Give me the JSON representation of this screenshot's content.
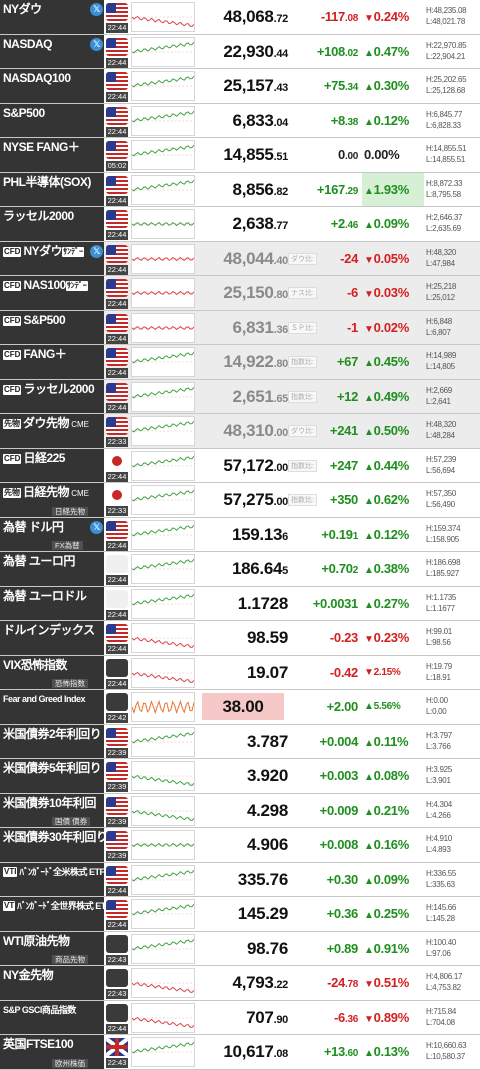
{
  "rows": [
    {
      "name": "NYダウ",
      "x": true,
      "flag": "us",
      "time": "22:44",
      "price_int": "48,068",
      "price_dec": ".72",
      "chg_int": "-117",
      "chg_dec": ".08",
      "dir": "dn",
      "pct": "0.24%",
      "high": "H:48,235.08",
      "low": "L:48,021.78",
      "trend": "dn"
    },
    {
      "name": "NASDAQ",
      "x": true,
      "flag": "us",
      "time": "22:44",
      "price_int": "22,930",
      "price_dec": ".44",
      "chg_int": "+108",
      "chg_dec": ".02",
      "dir": "up",
      "pct": "0.47%",
      "high": "H:22,970.85",
      "low": "L:22,904.21",
      "trend": "up"
    },
    {
      "name": "NASDAQ100",
      "flag": "us",
      "time": "22:44",
      "price_int": "25,157",
      "price_dec": ".43",
      "chg_int": "+75",
      "chg_dec": ".34",
      "dir": "up",
      "pct": "0.30%",
      "high": "H:25,202.65",
      "low": "L:25,128.68",
      "trend": "up"
    },
    {
      "name": "S&P500",
      "flag": "us",
      "time": "22:44",
      "price_int": "6,833",
      "price_dec": ".04",
      "chg_int": "+8",
      "chg_dec": ".38",
      "dir": "up",
      "pct": "0.12%",
      "high": "H:6,845.77",
      "low": "L:6,828.33",
      "trend": "up"
    },
    {
      "name": "NYSE FANG＋",
      "flag": "us",
      "time": "05:02",
      "price_int": "14,855",
      "price_dec": ".51",
      "chg_int": "0",
      "chg_dec": ".00",
      "dir": "neu",
      "pct": "0.00%",
      "high": "H:14,855.51",
      "low": "L:14,855.51",
      "trend": "up"
    },
    {
      "name": "PHL半導体(SOX)",
      "flag": "us",
      "time": "22:44",
      "price_int": "8,856",
      "price_dec": ".82",
      "chg_int": "+167",
      "chg_dec": ".29",
      "dir": "up",
      "pct": "1.93%",
      "pct_hl": true,
      "high": "H:8,872.33",
      "low": "L:8,795.58",
      "trend": "up"
    },
    {
      "name": "ラッセル2000",
      "flag": "us",
      "time": "22:44",
      "price_int": "2,638",
      "price_dec": ".77",
      "chg_int": "+2",
      "chg_dec": ".46",
      "dir": "up",
      "pct": "0.09%",
      "high": "H:2,646.37",
      "low": "L:2,635.69",
      "trend": "flat"
    },
    {
      "name": "NYダウ",
      "tag": "CFD",
      "note": "ｻﾝﾃﾞｰ",
      "x": true,
      "flag": "us",
      "time": "22:44",
      "cfd": true,
      "price_int": "48,044",
      "price_dec": ".40",
      "label": "ダウ比:",
      "chg_int": "-24",
      "chg_dec": "",
      "dir": "dn",
      "pct": "0.05%",
      "high": "H:48,320",
      "low": "L:47,984",
      "trend": "flat"
    },
    {
      "name": "NAS100",
      "tag": "CFD",
      "note": "ｻﾝﾃﾞｰ",
      "flag": "us",
      "time": "22:44",
      "cfd": true,
      "price_int": "25,150",
      "price_dec": ".80",
      "label": "ナス比:",
      "chg_int": "-6",
      "chg_dec": "",
      "dir": "dn",
      "pct": "0.03%",
      "high": "H:25,218",
      "low": "L:25,012",
      "trend": "flat"
    },
    {
      "name": "S&P500",
      "tag": "CFD",
      "flag": "us",
      "time": "22:44",
      "cfd": true,
      "price_int": "6,831",
      "price_dec": ".36",
      "label": "ＳＰ比:",
      "chg_int": "-1",
      "chg_dec": "",
      "dir": "dn",
      "pct": "0.02%",
      "high": "H:6,848",
      "low": "L:6,807",
      "trend": "flat"
    },
    {
      "name": "FANG＋",
      "tag": "CFD",
      "flag": "us",
      "time": "22:44",
      "cfd": true,
      "price_int": "14,922",
      "price_dec": ".80",
      "label": "指数比:",
      "chg_int": "+67",
      "chg_dec": "",
      "dir": "up",
      "pct": "0.45%",
      "high": "H:14,989",
      "low": "L:14,805",
      "trend": "up"
    },
    {
      "name": "ラッセル2000",
      "tag": "CFD",
      "flag": "us",
      "time": "22:44",
      "cfd": true,
      "price_int": "2,651",
      "price_dec": ".65",
      "label": "指数比:",
      "chg_int": "+12",
      "chg_dec": "",
      "dir": "up",
      "pct": "0.49%",
      "high": "H:2,669",
      "low": "L:2,641",
      "trend": "up"
    },
    {
      "name": "ダウ先物",
      "tag": "先物",
      "suffix": "CME",
      "flag": "us",
      "time": "22:33",
      "cfd": true,
      "price_int": "48,310",
      "price_dec": ".00",
      "label": "ダウ比:",
      "chg_int": "+241",
      "chg_dec": "",
      "dir": "up",
      "pct": "0.50%",
      "high": "H:48,320",
      "low": "L:48,284",
      "trend": "up"
    },
    {
      "name": "日経225",
      "tag": "CFD",
      "flag": "jp",
      "time": "22:44",
      "price_int": "57,172",
      "price_dec": ".00",
      "label": "指数比:",
      "chg_int": "+247",
      "chg_dec": "",
      "dir": "up",
      "pct": "0.44%",
      "high": "H:57,239",
      "low": "L:56,694",
      "trend": "up"
    },
    {
      "name": "日経先物",
      "tag": "先物",
      "suffix": "CME",
      "sub": "日経先物",
      "flag": "jp",
      "time": "22:33",
      "price_int": "57,275",
      "price_dec": ".00",
      "label": "指数比:",
      "chg_int": "+350",
      "chg_dec": "",
      "dir": "up",
      "pct": "0.62%",
      "high": "H:57,350",
      "low": "L:56,490",
      "trend": "up"
    },
    {
      "name": "為替 ドル円",
      "x": true,
      "sub": "FX為替",
      "flag": "us",
      "time": "22:44",
      "price_int": "159.13",
      "price_dec": "6",
      "chg_int": "+0.19",
      "chg_dec": "1",
      "dir": "up",
      "pct": "0.12%",
      "high": "H:159.374",
      "low": "L:158.905",
      "trend": "up"
    },
    {
      "name": "為替 ユーロ円",
      "flag": "eu",
      "time": "22:44",
      "price_int": "186.64",
      "price_dec": "5",
      "chg_int": "+0.70",
      "chg_dec": "2",
      "dir": "up",
      "pct": "0.38%",
      "high": "H:186.698",
      "low": "L:185.927",
      "trend": "up"
    },
    {
      "name": "為替 ユーロドル",
      "flag": "eu",
      "time": "22:44",
      "price_int": "1.1728",
      "price_dec": "",
      "chg_int": "+0.0031",
      "chg_dec": "",
      "dir": "up",
      "pct": "0.27%",
      "high": "H:1.1735",
      "low": "L:1.1677",
      "trend": "up"
    },
    {
      "name": "ドルインデックス",
      "flag": "us",
      "time": "22:44",
      "price_int": "98.59",
      "price_dec": "",
      "chg_int": "-0.23",
      "chg_dec": "",
      "dir": "dn",
      "pct": "0.23%",
      "high": "H:99.01",
      "low": "L:98.56",
      "trend": "dn"
    },
    {
      "name": "VIX恐怖指数",
      "sub": "恐怖指数",
      "flag": "sym",
      "time": "22:44",
      "price_int": "19.07",
      "price_dec": "",
      "chg_int": "-0.42",
      "chg_dec": "",
      "dir": "dn",
      "pct": "2.15%",
      "pct_small": true,
      "high": "H:19.79",
      "low": "L:18.91",
      "trend": "dn"
    },
    {
      "name": "Fear and Greed Index",
      "small_name": true,
      "flag": "sym",
      "time": "22:42",
      "price_int": "38.00",
      "price_dec": "",
      "box": true,
      "chg_int": "+2.00",
      "chg_dec": "",
      "dir": "up",
      "pct": "5.56%",
      "pct_small": true,
      "high": "H:0.00",
      "low": "L:0.00",
      "trend": "noisy"
    },
    {
      "name": "米国債券2年利回り",
      "flag": "us",
      "time": "22:39",
      "price_int": "3.787",
      "price_dec": "",
      "chg_int": "+0.004",
      "chg_dec": "",
      "dir": "up",
      "pct": "0.11%",
      "high": "H:3.797",
      "low": "L:3.766",
      "trend": "up"
    },
    {
      "name": "米国債券5年利回り",
      "flag": "us",
      "time": "22:39",
      "price_int": "3.920",
      "price_dec": "",
      "chg_int": "+0.003",
      "chg_dec": "",
      "dir": "up",
      "pct": "0.08%",
      "high": "H:3.925",
      "low": "L:3.901",
      "trend": "dn"
    },
    {
      "name": "米国債券10年利回",
      "sub": "国債 債券",
      "flag": "us",
      "time": "22:39",
      "price_int": "4.298",
      "price_dec": "",
      "chg_int": "+0.009",
      "chg_dec": "",
      "dir": "up",
      "pct": "0.21%",
      "high": "H:4.304",
      "low": "L:4.266",
      "trend": "dn"
    },
    {
      "name": "米国債券30年利回り",
      "flag": "us",
      "time": "22:39",
      "price_int": "4.906",
      "price_dec": "",
      "chg_int": "+0.008",
      "chg_dec": "",
      "dir": "up",
      "pct": "0.16%",
      "high": "H:4.910",
      "low": "L:4.893",
      "trend": "flat"
    },
    {
      "name": "ﾊﾞﾝｶﾞｰﾄﾞ全米株式 ETF",
      "tag": "VTI",
      "small_name": true,
      "flag": "us",
      "time": "22:44",
      "price_int": "335.76",
      "price_dec": "",
      "chg_int": "+0.30",
      "chg_dec": "",
      "dir": "up",
      "pct": "0.09%",
      "high": "H:336.55",
      "low": "L:335.63",
      "trend": "up"
    },
    {
      "name": "ﾊﾞﾝｶﾞｰﾄﾞ全世界株式 ETF",
      "tag": "VT",
      "small_name": true,
      "flag": "us",
      "time": "22:44",
      "price_int": "145.29",
      "price_dec": "",
      "chg_int": "+0.36",
      "chg_dec": "",
      "dir": "up",
      "pct": "0.25%",
      "high": "H:145.66",
      "low": "L:145.28",
      "trend": "up"
    },
    {
      "name": "WTI原油先物",
      "sub": "商品先物",
      "flag": "sym",
      "time": "22:43",
      "price_int": "98.76",
      "price_dec": "",
      "chg_int": "+0.89",
      "chg_dec": "",
      "dir": "up",
      "pct": "0.91%",
      "high": "H:100.40",
      "low": "L:97.06",
      "trend": "up"
    },
    {
      "name": "NY金先物",
      "flag": "sym",
      "time": "22:43",
      "price_int": "4,793",
      "price_dec": ".22",
      "chg_int": "-24",
      "chg_dec": ".78",
      "dir": "dn",
      "pct": "0.51%",
      "high": "H:4,806.17",
      "low": "L:4,753.82",
      "trend": "dn"
    },
    {
      "name": "S&P GSCI商品指数",
      "small_name": true,
      "flag": "sym",
      "time": "22:44",
      "price_int": "707",
      "price_dec": ".90",
      "chg_int": "-6",
      "chg_dec": ".36",
      "dir": "dn",
      "pct": "0.89%",
      "high": "H:715.84",
      "low": "L:704.08",
      "trend": "dn"
    },
    {
      "name": "英国FTSE100",
      "sub": "欧州株価",
      "flag": "uk",
      "time": "22:43",
      "price_int": "10,617",
      "price_dec": ".08",
      "chg_int": "+13",
      "chg_dec": ".60",
      "dir": "up",
      "pct": "0.13%",
      "high": "H:10,660.63",
      "low": "L:10,580.37",
      "trend": "up"
    }
  ]
}
